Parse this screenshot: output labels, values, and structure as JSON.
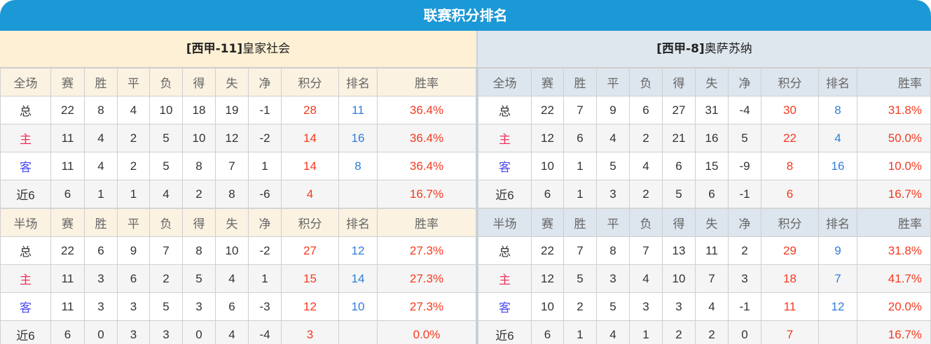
{
  "title": "联赛积分排名",
  "colors": {
    "accent": "#1b98d6",
    "points": "#f5391f",
    "rank": "#2f7ed8"
  },
  "headers_full": [
    "全场",
    "赛",
    "胜",
    "平",
    "负",
    "得",
    "失",
    "净",
    "积分",
    "排名",
    "胜率"
  ],
  "headers_half": [
    "半场",
    "赛",
    "胜",
    "平",
    "负",
    "得",
    "失",
    "净",
    "积分",
    "排名",
    "胜率"
  ],
  "teams": [
    {
      "name_prefix": "[西甲-11]",
      "name": "皇家社会",
      "full": [
        [
          "总",
          "22",
          "8",
          "4",
          "10",
          "18",
          "19",
          "-1",
          "28",
          "11",
          "36.4%"
        ],
        [
          "主",
          "11",
          "4",
          "2",
          "5",
          "10",
          "12",
          "-2",
          "14",
          "16",
          "36.4%"
        ],
        [
          "客",
          "11",
          "4",
          "2",
          "5",
          "8",
          "7",
          "1",
          "14",
          "8",
          "36.4%"
        ],
        [
          "近6",
          "6",
          "1",
          "1",
          "4",
          "2",
          "8",
          "-6",
          "4",
          "",
          "16.7%"
        ]
      ],
      "half": [
        [
          "总",
          "22",
          "6",
          "9",
          "7",
          "8",
          "10",
          "-2",
          "27",
          "12",
          "27.3%"
        ],
        [
          "主",
          "11",
          "3",
          "6",
          "2",
          "5",
          "4",
          "1",
          "15",
          "14",
          "27.3%"
        ],
        [
          "客",
          "11",
          "3",
          "3",
          "5",
          "3",
          "6",
          "-3",
          "12",
          "10",
          "27.3%"
        ],
        [
          "近6",
          "6",
          "0",
          "3",
          "3",
          "0",
          "4",
          "-4",
          "3",
          "",
          "0.0%"
        ]
      ]
    },
    {
      "name_prefix": "[西甲-8]",
      "name": "奥萨苏纳",
      "full": [
        [
          "总",
          "22",
          "7",
          "9",
          "6",
          "27",
          "31",
          "-4",
          "30",
          "8",
          "31.8%"
        ],
        [
          "主",
          "12",
          "6",
          "4",
          "2",
          "21",
          "16",
          "5",
          "22",
          "4",
          "50.0%"
        ],
        [
          "客",
          "10",
          "1",
          "5",
          "4",
          "6",
          "15",
          "-9",
          "8",
          "16",
          "10.0%"
        ],
        [
          "近6",
          "6",
          "1",
          "3",
          "2",
          "5",
          "6",
          "-1",
          "6",
          "",
          "16.7%"
        ]
      ],
      "half": [
        [
          "总",
          "22",
          "7",
          "8",
          "7",
          "13",
          "11",
          "2",
          "29",
          "9",
          "31.8%"
        ],
        [
          "主",
          "12",
          "5",
          "3",
          "4",
          "10",
          "7",
          "3",
          "18",
          "7",
          "41.7%"
        ],
        [
          "客",
          "10",
          "2",
          "5",
          "3",
          "3",
          "4",
          "-1",
          "11",
          "12",
          "20.0%"
        ],
        [
          "近6",
          "6",
          "1",
          "4",
          "1",
          "2",
          "2",
          "0",
          "7",
          "",
          "16.7%"
        ]
      ]
    }
  ]
}
